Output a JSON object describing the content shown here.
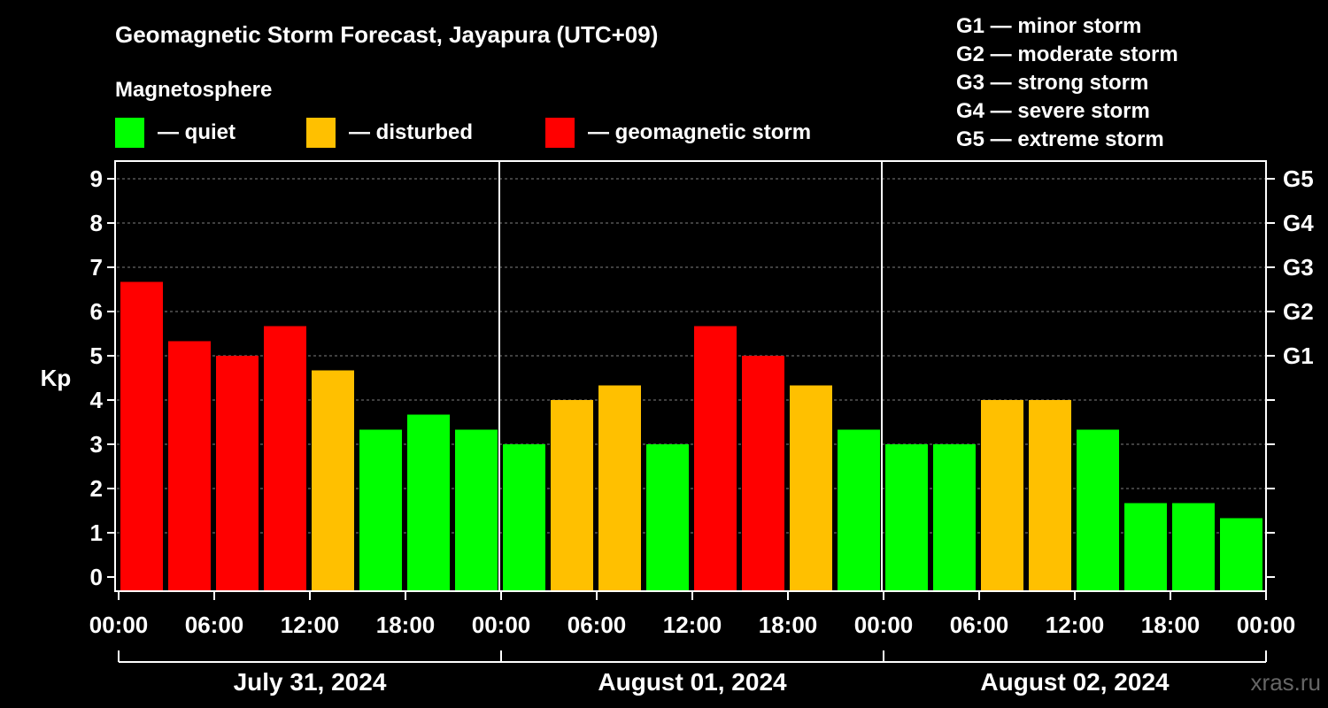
{
  "chart_data": {
    "type": "bar",
    "title": "Geomagnetic Storm Forecast, Jayapura (UTC+09)",
    "subtitle": "Magnetosphere",
    "ylabel": "Kp",
    "ylim": [
      0,
      9
    ],
    "yticks": [
      "0",
      "1",
      "2",
      "3",
      "4",
      "5",
      "6",
      "7",
      "8",
      "9"
    ],
    "right_ticks": [
      {
        "kp": 5,
        "label": "G1"
      },
      {
        "kp": 6,
        "label": "G2"
      },
      {
        "kp": 7,
        "label": "G3"
      },
      {
        "kp": 8,
        "label": "G4"
      },
      {
        "kp": 9,
        "label": "G5"
      }
    ],
    "legend": [
      {
        "label": "— quiet",
        "color": "#00ff00"
      },
      {
        "label": "— disturbed",
        "color": "#ffc000"
      },
      {
        "label": "— geomagnetic storm",
        "color": "#ff0000"
      }
    ],
    "scale_legend": [
      "G1 — minor storm",
      "G2 — moderate storm",
      "G3 — strong storm",
      "G4 — severe storm",
      "G5 — extreme storm"
    ],
    "xtick_labels": [
      "00:00",
      "06:00",
      "12:00",
      "18:00",
      "00:00",
      "06:00",
      "12:00",
      "18:00",
      "00:00",
      "06:00",
      "12:00",
      "18:00",
      "00:00"
    ],
    "days": [
      "July 31, 2024",
      "August 01, 2024",
      "August 02, 2024"
    ],
    "values": [
      6.67,
      5.33,
      5.0,
      5.67,
      4.67,
      3.33,
      3.67,
      3.33,
      3.0,
      4.0,
      4.33,
      3.0,
      5.67,
      5.0,
      4.33,
      3.33,
      3.0,
      3.0,
      4.0,
      4.0,
      3.33,
      1.67,
      1.67,
      1.33
    ],
    "statuses": [
      "storm",
      "storm",
      "storm",
      "storm",
      "disturbed",
      "quiet",
      "quiet",
      "quiet",
      "quiet",
      "disturbed",
      "disturbed",
      "quiet",
      "storm",
      "storm",
      "disturbed",
      "quiet",
      "quiet",
      "quiet",
      "disturbed",
      "disturbed",
      "quiet",
      "quiet",
      "quiet",
      "quiet"
    ],
    "status_colors": {
      "quiet": "#00ff00",
      "disturbed": "#ffc000",
      "storm": "#ff0000"
    },
    "grid_color": "#808080",
    "watermark": "xras.ru"
  }
}
